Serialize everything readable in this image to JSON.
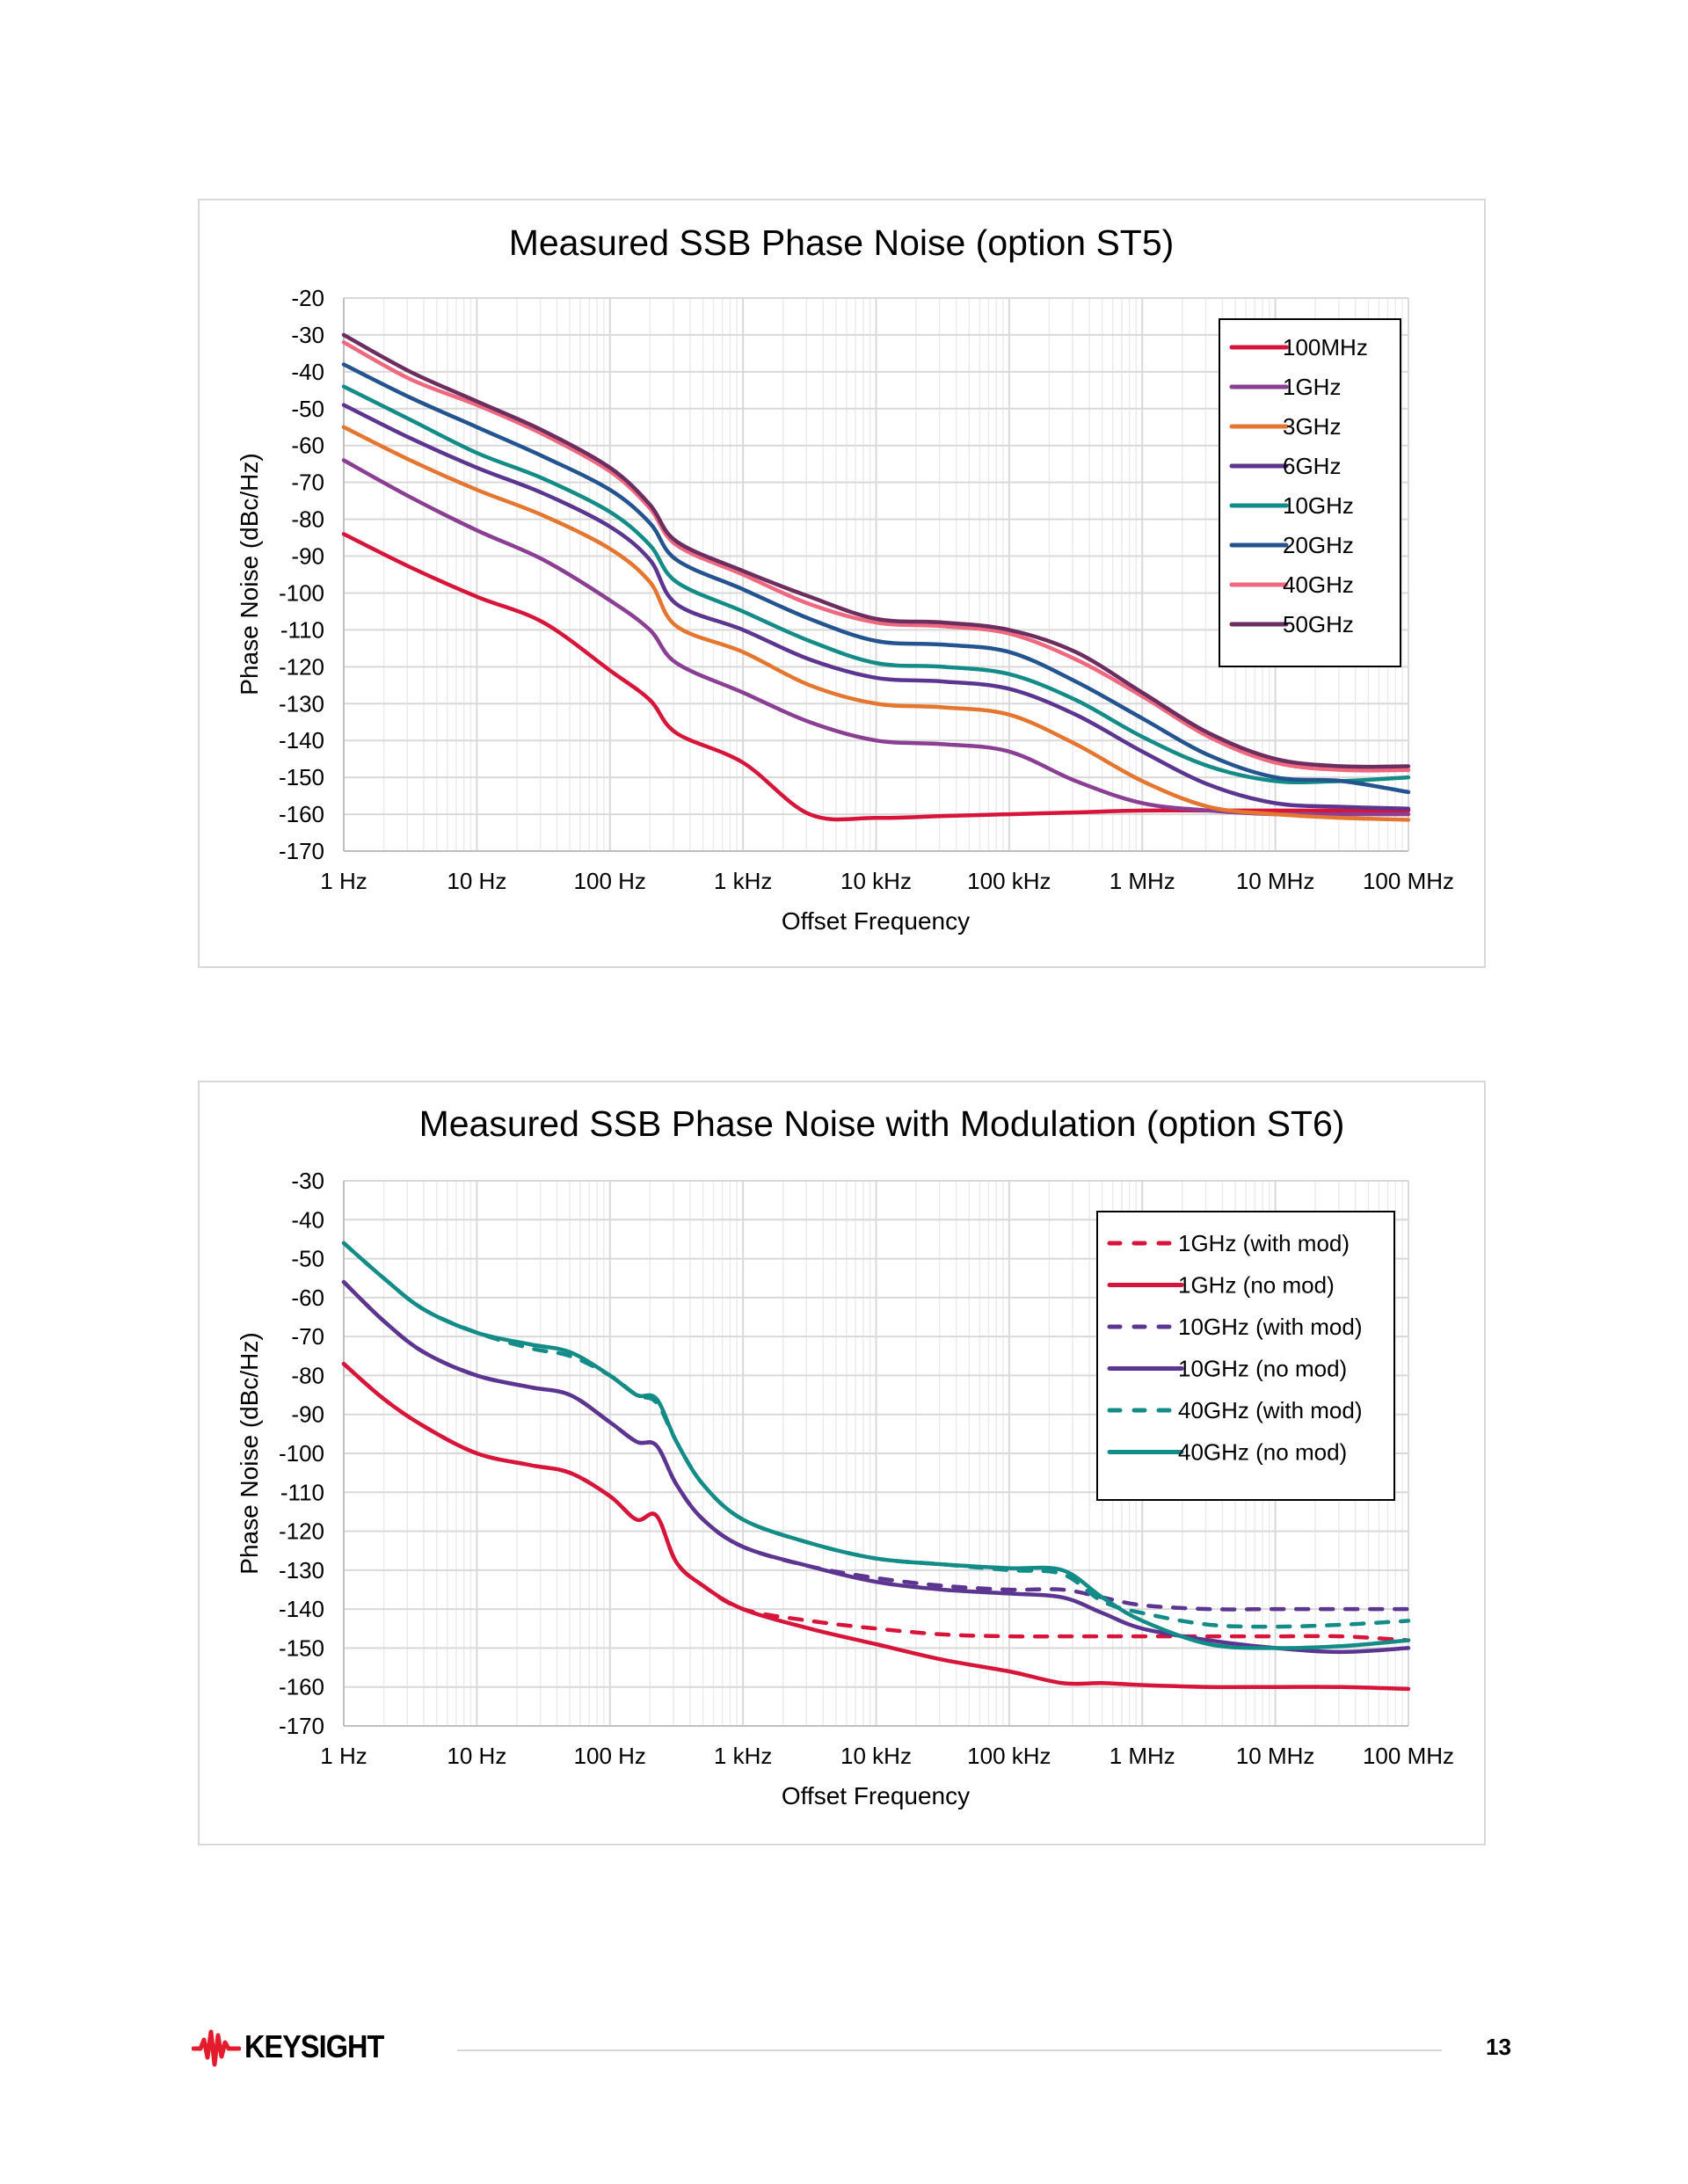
{
  "page": {
    "brand": "KEYSIGHT",
    "page_number": "13",
    "brand_color": "#e31c2d"
  },
  "chart_data": [
    {
      "type": "line",
      "title": "Measured SSB Phase Noise (option ST5)",
      "xlabel": "Offset Frequency",
      "ylabel": "Phase Noise (dBc/Hz)",
      "x_scale": "log10",
      "xlim": [
        1,
        100000000
      ],
      "ylim": [
        -170,
        -20
      ],
      "x_ticks": [
        "1 Hz",
        "10 Hz",
        "100 Hz",
        "1 kHz",
        "10 kHz",
        "100 kHz",
        "1 MHz",
        "10 MHz",
        "100 MHz"
      ],
      "y_ticks": [
        -20,
        -30,
        -40,
        -50,
        -60,
        -70,
        -80,
        -90,
        -100,
        -110,
        -120,
        -130,
        -140,
        -150,
        -160,
        -170
      ],
      "grid": true,
      "legend_position": "top-right",
      "x_decades": [
        0,
        0.5,
        1,
        1.5,
        2,
        2.3,
        2.5,
        3,
        3.5,
        4,
        4.5,
        5,
        5.5,
        6,
        6.5,
        7,
        7.5,
        8
      ],
      "series": [
        {
          "name": "100MHz",
          "color": "#d7143a",
          "dash": false,
          "values": [
            -84,
            -93,
            -101,
            -108,
            -121,
            -129,
            -138,
            -146,
            -160,
            -161,
            -160.5,
            -160,
            -159.5,
            -159,
            -159,
            -159,
            -159,
            -159
          ]
        },
        {
          "name": "1GHz",
          "color": "#8b3f93",
          "dash": false,
          "values": [
            -64,
            -74,
            -83,
            -91,
            -102,
            -110,
            -119,
            -127,
            -135,
            -140,
            -141,
            -143,
            -151,
            -157,
            -159,
            -160,
            -160,
            -160
          ]
        },
        {
          "name": "3GHz",
          "color": "#e5762f",
          "dash": false,
          "values": [
            -55,
            -64,
            -72,
            -79,
            -88,
            -97,
            -109,
            -116,
            -125,
            -130,
            -131,
            -133,
            -141,
            -151,
            -158,
            -160,
            -161,
            -161.5
          ]
        },
        {
          "name": "6GHz",
          "color": "#5b3590",
          "dash": false,
          "values": [
            -49,
            -58,
            -66,
            -73,
            -82,
            -91,
            -103,
            -110,
            -118,
            -123,
            -124,
            -126,
            -133,
            -143,
            -152,
            -157,
            -158,
            -158.5
          ]
        },
        {
          "name": "10GHz",
          "color": "#138b87",
          "dash": false,
          "values": [
            -44,
            -53,
            -62,
            -69,
            -78,
            -87,
            -97,
            -105,
            -113,
            -119,
            -120,
            -122,
            -129,
            -139,
            -147,
            -151,
            -151,
            -150
          ]
        },
        {
          "name": "20GHz",
          "color": "#23548f",
          "dash": false,
          "values": [
            -38,
            -47,
            -55,
            -63,
            -72,
            -81,
            -91,
            -99,
            -107,
            -113,
            -114,
            -116,
            -124,
            -134,
            -144,
            -150,
            -151,
            -154
          ]
        },
        {
          "name": "40GHz",
          "color": "#ee6880",
          "dash": false,
          "values": [
            -32,
            -42,
            -49,
            -57,
            -67,
            -77,
            -87,
            -95,
            -103,
            -108,
            -109,
            -111,
            -118,
            -128,
            -139,
            -146,
            -148,
            -148
          ]
        },
        {
          "name": "50GHz",
          "color": "#6b2e5f",
          "dash": false,
          "values": [
            -30,
            -40,
            -48,
            -56,
            -66,
            -76,
            -86,
            -94,
            -101,
            -107,
            -108,
            -110,
            -116,
            -127,
            -138,
            -145,
            -147,
            -147
          ]
        }
      ]
    },
    {
      "type": "line",
      "title": "Measured SSB Phase Noise with Modulation (option ST6)",
      "xlabel": "Offset Frequency",
      "ylabel": "Phase Noise (dBc/Hz)",
      "x_scale": "log10",
      "xlim": [
        1,
        100000000
      ],
      "ylim": [
        -170,
        -30
      ],
      "x_ticks": [
        "1 Hz",
        "10 Hz",
        "100 Hz",
        "1 kHz",
        "10 kHz",
        "100 kHz",
        "1 MHz",
        "10 MHz",
        "100 MHz"
      ],
      "y_ticks": [
        -30,
        -40,
        -50,
        -60,
        -70,
        -80,
        -90,
        -100,
        -110,
        -120,
        -130,
        -140,
        -150,
        -160,
        -170
      ],
      "grid": true,
      "legend_position": "top-right",
      "x_decades": [
        0,
        0.3,
        0.6,
        1,
        1.4,
        1.7,
        2,
        2.2,
        2.35,
        2.5,
        2.7,
        3,
        3.5,
        4,
        4.5,
        5,
        5.4,
        5.7,
        6,
        6.5,
        7,
        7.5,
        8
      ],
      "series": [
        {
          "name": "1GHz (with mod)",
          "color": "#d7143a",
          "dash": true,
          "values": [
            -77,
            -86,
            -93,
            -100,
            -103,
            -105,
            -111,
            -117,
            -116,
            -128,
            -134,
            -140,
            -143,
            -145,
            -146.5,
            -147,
            -147,
            -147,
            -147,
            -147,
            -147,
            -147,
            -148
          ]
        },
        {
          "name": "1GHz (no mod)",
          "color": "#d7143a",
          "dash": false,
          "values": [
            -77,
            -86,
            -93,
            -100,
            -103,
            -105,
            -111,
            -117,
            -116,
            -128,
            -134,
            -140,
            -145,
            -149,
            -153,
            -156,
            -159,
            -159,
            -159.5,
            -160,
            -160,
            -160,
            -160.5
          ]
        },
        {
          "name": "10GHz (with mod)",
          "color": "#5b3590",
          "dash": true,
          "values": [
            -56,
            -66,
            -74,
            -80,
            -83,
            -85,
            -92,
            -97,
            -98,
            -108,
            -117,
            -124,
            -129,
            -132,
            -134,
            -135,
            -135,
            -137,
            -139,
            -140,
            -140,
            -140,
            -140
          ]
        },
        {
          "name": "10GHz (no mod)",
          "color": "#5b3590",
          "dash": false,
          "values": [
            -56,
            -66,
            -74,
            -80,
            -83,
            -85,
            -92,
            -97,
            -98,
            -108,
            -117,
            -124,
            -129,
            -133,
            -135,
            -136,
            -137,
            -141,
            -145,
            -148,
            -150,
            -151,
            -150
          ]
        },
        {
          "name": "40GHz (with mod)",
          "color": "#138b87",
          "dash": true,
          "values": [
            -46,
            -55,
            -63,
            -69,
            -73,
            -75,
            -80,
            -85,
            -87,
            -97,
            -108,
            -117,
            -123,
            -127,
            -128.5,
            -130,
            -131,
            -138,
            -141,
            -144,
            -144.5,
            -144,
            -143
          ]
        },
        {
          "name": "40GHz (no mod)",
          "color": "#138b87",
          "dash": false,
          "values": [
            -46,
            -55,
            -63,
            -69,
            -72,
            -74,
            -80,
            -85,
            -86,
            -97,
            -108,
            -117,
            -123,
            -127,
            -128.5,
            -129.5,
            -130,
            -137,
            -143,
            -149,
            -150,
            -149.5,
            -148
          ]
        }
      ]
    }
  ]
}
